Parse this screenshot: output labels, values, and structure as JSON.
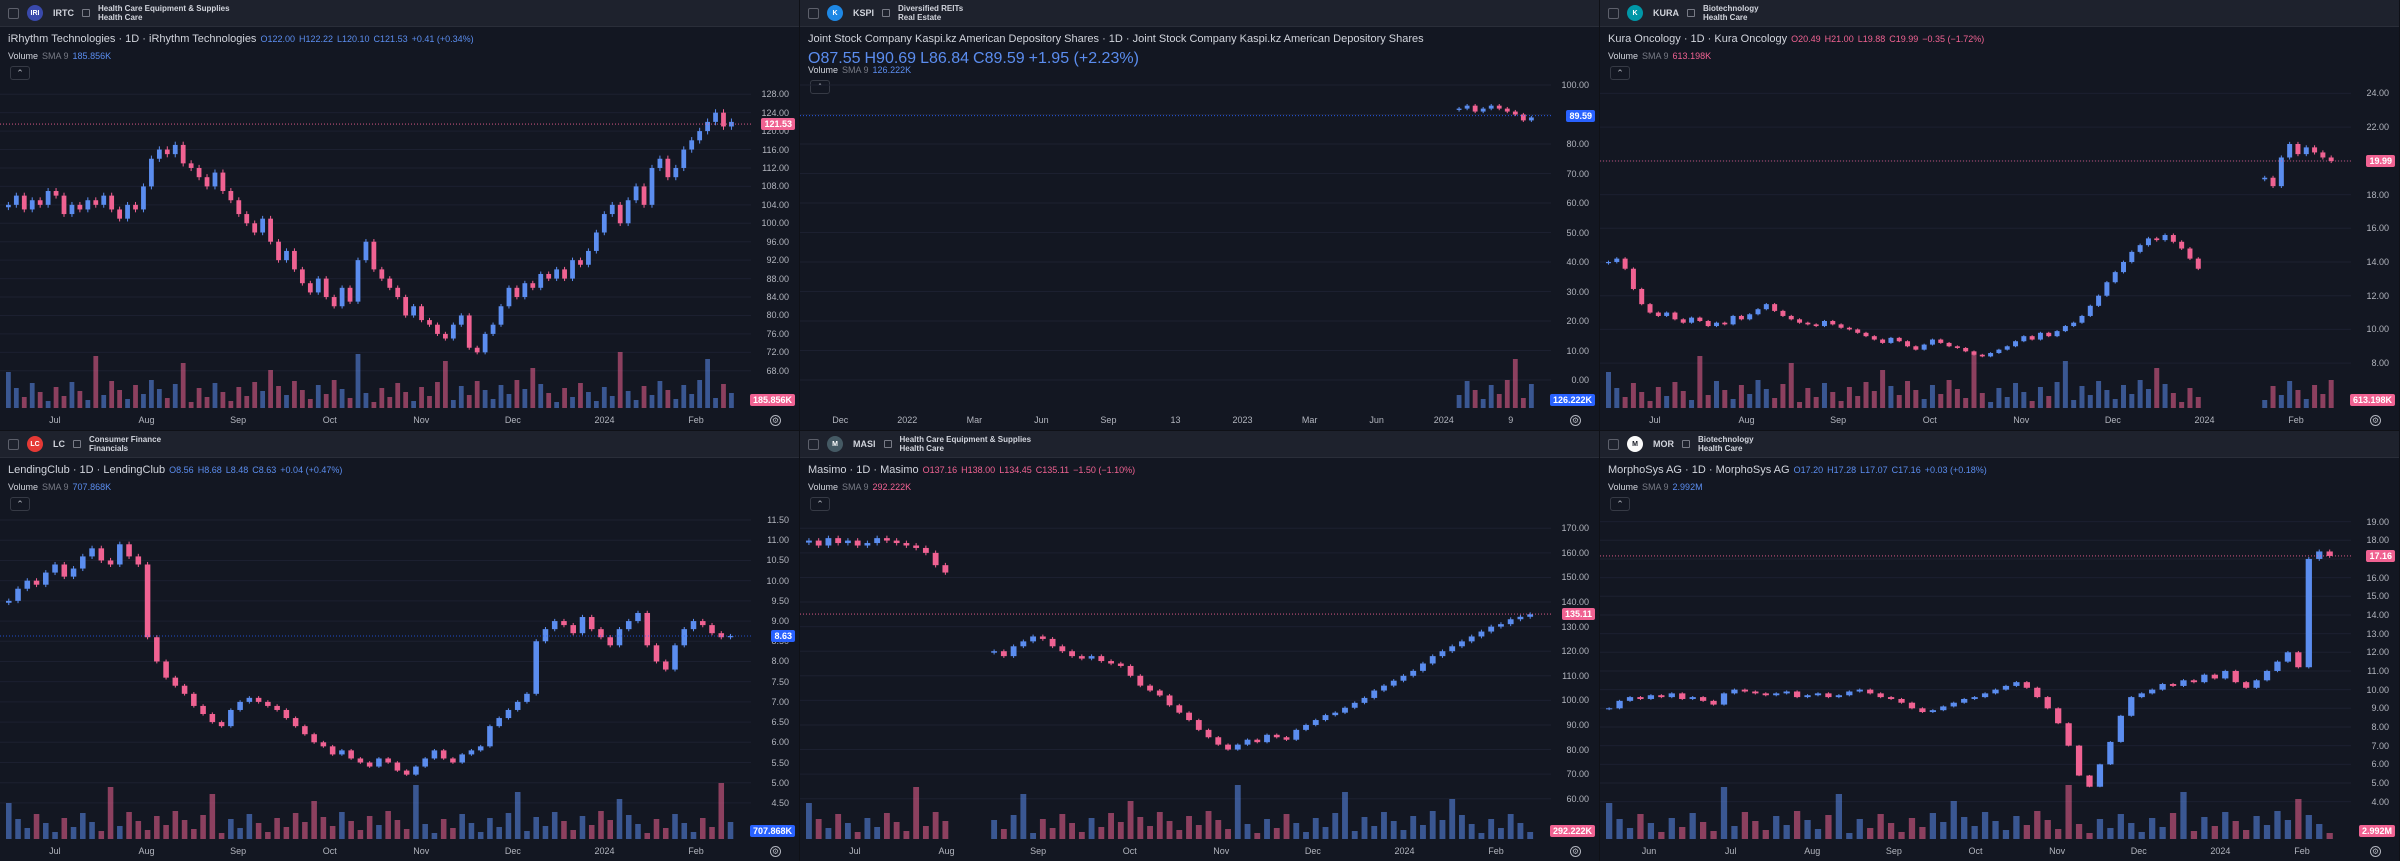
{
  "colors": {
    "up": "#5b8def",
    "down": "#f06292",
    "bg": "#131722"
  },
  "panes": [
    {
      "ticker": "IRTC",
      "sector1": "Health Care Equipment & Supplies",
      "sector2": "Health Care",
      "logo_text": "IRI",
      "logo_color": "#3949ab",
      "title": "iRhythm Technologies · 1D · iRhythm Technologies",
      "ohlc": {
        "o": "O122.00",
        "h": "H122.22",
        "l": "L120.10",
        "c": "C121.53",
        "chg": "+0.41 (+0.34%)"
      },
      "trend": "up",
      "volume": "185.856K",
      "price": "121.53",
      "price_badge_color": "#f06292",
      "vol_badge_color": "#f06292",
      "yticks": [
        "128.00",
        "124.00",
        "120.00",
        "116.00",
        "112.00",
        "108.00",
        "104.00",
        "100.00",
        "96.00",
        "92.00",
        "88.00",
        "84.00",
        "80.00",
        "76.00",
        "72.00",
        "68.00"
      ],
      "ymin": 66,
      "ymax": 130,
      "xticks": [
        "Jul",
        "Aug",
        "Sep",
        "Oct",
        "Nov",
        "Dec",
        "2024",
        "Feb"
      ],
      "series": [
        104,
        106,
        103,
        105,
        104,
        107,
        106,
        102,
        104,
        103,
        105,
        104,
        106,
        103,
        101,
        104,
        103,
        108,
        114,
        116,
        115,
        117,
        113,
        112,
        110,
        108,
        111,
        107,
        105,
        102,
        100,
        98,
        101,
        96,
        92,
        94,
        90,
        87,
        85,
        88,
        84,
        82,
        86,
        83,
        92,
        96,
        90,
        88,
        86,
        84,
        80,
        82,
        79,
        78,
        76,
        75,
        78,
        80,
        73,
        72,
        76,
        78,
        82,
        86,
        84,
        87,
        86,
        89,
        88,
        90,
        88,
        92,
        91,
        94,
        98,
        102,
        104,
        100,
        105,
        108,
        104,
        112,
        114,
        110,
        112,
        116,
        118,
        120,
        122,
        124,
        121,
        122
      ]
    },
    {
      "ticker": "KSPI",
      "sector1": "Diversified REITs",
      "sector2": "Real Estate",
      "logo_text": "K",
      "logo_color": "#1e88e5",
      "title": "Joint Stock Company Kaspi.kz American Depository Shares · 1D · Joint Stock Company Kaspi.kz American Depository Shares",
      "ohlc": {
        "o": "O87.55",
        "h": "H90.69",
        "l": "L86.84",
        "c": "C89.59",
        "chg": "+1.95 (+2.23%)"
      },
      "trend": "up",
      "volume": "126.222K",
      "price": "89.59",
      "price_badge_color": "#2962ff",
      "vol_badge_color": "#2962ff",
      "yticks": [
        "100.00",
        "90.00",
        "80.00",
        "70.00",
        "60.00",
        "50.00",
        "40.00",
        "30.00",
        "20.00",
        "10.00",
        "0.00"
      ],
      "ymin": 0,
      "ymax": 100,
      "xticks": [
        "Dec",
        "2022",
        "Mar",
        "Jun",
        "Sep",
        "13",
        "2023",
        "Mar",
        "Jun",
        "2024",
        "9"
      ],
      "series": [
        null,
        null,
        null,
        null,
        null,
        null,
        null,
        null,
        null,
        null,
        null,
        null,
        null,
        null,
        null,
        null,
        null,
        null,
        null,
        null,
        null,
        null,
        null,
        null,
        null,
        null,
        null,
        null,
        null,
        null,
        null,
        null,
        null,
        null,
        null,
        null,
        null,
        null,
        null,
        null,
        null,
        null,
        null,
        null,
        null,
        null,
        null,
        null,
        null,
        null,
        null,
        null,
        null,
        null,
        null,
        null,
        null,
        null,
        null,
        null,
        null,
        null,
        null,
        null,
        null,
        null,
        null,
        null,
        null,
        null,
        null,
        null,
        null,
        null,
        null,
        null,
        null,
        null,
        null,
        null,
        null,
        92,
        93,
        91,
        92,
        93,
        92,
        91,
        90,
        88,
        89
      ]
    },
    {
      "ticker": "KURA",
      "sector1": "Biotechnology",
      "sector2": "Health Care",
      "logo_text": "K",
      "logo_color": "#0097a7",
      "title": "Kura Oncology · 1D · Kura Oncology",
      "ohlc": {
        "o": "O20.49",
        "h": "H21.00",
        "l": "L19.88",
        "c": "C19.99",
        "chg": "−0.35 (−1.72%)"
      },
      "trend": "down",
      "volume": "613.198K",
      "price": "19.99",
      "price_badge_color": "#f06292",
      "vol_badge_color": "#f06292",
      "yticks": [
        "24.00",
        "22.00",
        "20.00",
        "18.00",
        "16.00",
        "14.00",
        "12.00",
        "10.00",
        "8.00"
      ],
      "ymin": 7,
      "ymax": 24.5,
      "xticks": [
        "Jul",
        "Aug",
        "Sep",
        "Oct",
        "Nov",
        "Dec",
        "2024",
        "Feb"
      ],
      "series": [
        14,
        14.2,
        13.6,
        12.4,
        11.5,
        11,
        10.8,
        11,
        10.6,
        10.4,
        10.7,
        10.5,
        10.2,
        10.4,
        10.3,
        10.8,
        10.6,
        10.9,
        11.2,
        11.5,
        11.1,
        10.8,
        10.6,
        10.4,
        10.3,
        10.2,
        10.5,
        10.3,
        10.1,
        10,
        9.8,
        9.6,
        9.4,
        9.2,
        9.5,
        9.3,
        9,
        8.8,
        9.1,
        9.4,
        9.2,
        9,
        8.9,
        8.7,
        8.5,
        8.4,
        8.6,
        8.8,
        9,
        9.3,
        9.6,
        9.4,
        9.8,
        9.6,
        9.9,
        10.2,
        10.4,
        10.8,
        11.4,
        12,
        12.8,
        13.4,
        14,
        14.6,
        15,
        15.4,
        15.3,
        15.6,
        15.2,
        14.8,
        14.2,
        13.6,
        null,
        null,
        null,
        null,
        null,
        null,
        null,
        19,
        18.5,
        20.2,
        21,
        20.4,
        20.8,
        20.5,
        20.2,
        19.99
      ]
    },
    {
      "ticker": "LC",
      "sector1": "Consumer Finance",
      "sector2": "Financials",
      "logo_text": "LC",
      "logo_color": "#e53935",
      "title": "LendingClub · 1D · LendingClub",
      "ohlc": {
        "o": "O8.56",
        "h": "H8.68",
        "l": "L8.48",
        "c": "C8.63",
        "chg": "+0.04 (+0.47%)"
      },
      "trend": "up",
      "volume": "707.868K",
      "price": "8.63",
      "price_badge_color": "#2962ff",
      "vol_badge_color": "#2962ff",
      "yticks": [
        "11.50",
        "11.00",
        "10.50",
        "10.00",
        "9.50",
        "9.00",
        "8.50",
        "8.00",
        "7.50",
        "7.00",
        "6.50",
        "6.00",
        "5.50",
        "5.00",
        "4.50"
      ],
      "ymin": 4.3,
      "ymax": 11.6,
      "xticks": [
        "Jul",
        "Aug",
        "Sep",
        "Oct",
        "Nov",
        "Dec",
        "2024",
        "Feb"
      ],
      "series": [
        9.5,
        9.8,
        10,
        9.9,
        10.2,
        10.4,
        10.1,
        10.3,
        10.6,
        10.8,
        10.5,
        10.4,
        10.9,
        10.6,
        10.4,
        8.6,
        8,
        7.6,
        7.4,
        7.2,
        6.9,
        6.7,
        6.5,
        6.4,
        6.8,
        7,
        7.1,
        7,
        6.9,
        6.8,
        6.6,
        6.4,
        6.2,
        6,
        5.9,
        5.7,
        5.8,
        5.6,
        5.5,
        5.4,
        5.6,
        5.5,
        5.3,
        5.2,
        5.4,
        5.6,
        5.8,
        5.6,
        5.5,
        5.7,
        5.8,
        5.9,
        6.4,
        6.6,
        6.8,
        7,
        7.2,
        8.5,
        8.8,
        9,
        8.9,
        8.7,
        9.1,
        8.8,
        8.6,
        8.4,
        8.8,
        9,
        9.2,
        8.4,
        8,
        7.8,
        8.4,
        8.8,
        9,
        8.9,
        8.7,
        8.6,
        8.63
      ]
    },
    {
      "ticker": "MASI",
      "sector1": "Health Care Equipment & Supplies",
      "sector2": "Health Care",
      "logo_text": "M",
      "logo_color": "#455a64",
      "title": "Masimo · 1D · Masimo",
      "ohlc": {
        "o": "O137.16",
        "h": "H138.00",
        "l": "L134.45",
        "c": "C135.11",
        "chg": "−1.50 (−1.10%)"
      },
      "trend": "down",
      "volume": "292.222K",
      "price": "135.11",
      "price_badge_color": "#f06292",
      "vol_badge_color": "#f06292",
      "yticks": [
        "170.00",
        "160.00",
        "150.00",
        "140.00",
        "130.00",
        "120.00",
        "110.00",
        "100.00",
        "90.00",
        "80.00",
        "70.00",
        "60.00"
      ],
      "ymin": 55,
      "ymax": 175,
      "xticks": [
        "Jul",
        "Aug",
        "Sep",
        "Oct",
        "Nov",
        "Dec",
        "2024",
        "Feb"
      ],
      "series": [
        165,
        163,
        166,
        164,
        165,
        163,
        164,
        166,
        165,
        164,
        163,
        162,
        160,
        155,
        152,
        null,
        null,
        null,
        null,
        120,
        118,
        122,
        124,
        126,
        125,
        122,
        120,
        118,
        117,
        118,
        116,
        115,
        114,
        110,
        106,
        104,
        102,
        98,
        95,
        92,
        88,
        85,
        82,
        80,
        82,
        84,
        83,
        86,
        85,
        84,
        88,
        90,
        92,
        94,
        95,
        97,
        99,
        101,
        104,
        106,
        108,
        110,
        112,
        115,
        118,
        120,
        122,
        124,
        126,
        128,
        130,
        131,
        133,
        134,
        135
      ]
    },
    {
      "ticker": "MOR",
      "sector1": "Biotechnology",
      "sector2": "Health Care",
      "logo_text": "M",
      "logo_color": "#fafafa",
      "title": "MorphoSys AG · 1D · MorphoSys AG",
      "ohlc": {
        "o": "O17.20",
        "h": "H17.28",
        "l": "L17.07",
        "c": "C17.16",
        "chg": "+0.03 (+0.18%)"
      },
      "trend": "up",
      "volume": "2.992M",
      "price": "17.16",
      "price_badge_color": "#f06292",
      "vol_badge_color": "#f06292",
      "yticks": [
        "19.00",
        "18.00",
        "17.00",
        "16.00",
        "15.00",
        "14.00",
        "13.00",
        "12.00",
        "11.00",
        "10.00",
        "9.00",
        "8.00",
        "7.00",
        "6.00",
        "5.00",
        "4.00"
      ],
      "ymin": 3.5,
      "ymax": 19.3,
      "xticks": [
        "Jun",
        "Jul",
        "Aug",
        "Sep",
        "Oct",
        "Nov",
        "Dec",
        "2024",
        "Feb"
      ],
      "series": [
        9,
        9.4,
        9.6,
        9.5,
        9.7,
        9.6,
        9.8,
        9.5,
        9.6,
        9.4,
        9.2,
        9.8,
        10,
        9.9,
        9.8,
        9.7,
        9.8,
        9.9,
        9.6,
        9.7,
        9.8,
        9.6,
        9.7,
        9.9,
        10,
        9.8,
        9.6,
        9.5,
        9.3,
        9,
        8.8,
        8.9,
        9.1,
        9.3,
        9.5,
        9.6,
        9.8,
        10,
        10.2,
        10.4,
        10.1,
        9.6,
        9,
        8.2,
        7,
        5.4,
        4.8,
        6,
        7.2,
        8.6,
        9.6,
        9.8,
        10,
        10.3,
        10.2,
        10.5,
        10.4,
        10.8,
        10.6,
        11,
        10.4,
        10.1,
        10.5,
        11,
        11.5,
        12,
        11.2,
        17,
        17.4,
        17.16
      ]
    }
  ]
}
